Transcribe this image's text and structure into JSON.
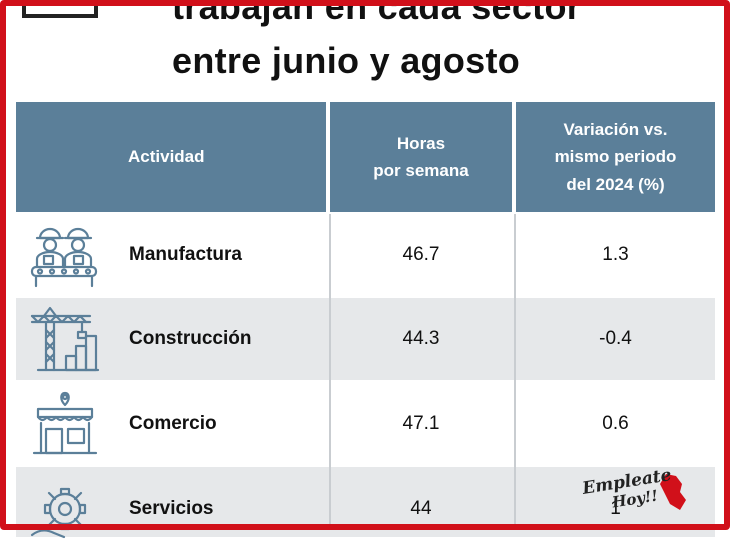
{
  "title": {
    "line1": "trabajan en cada sector",
    "line2": "entre junio y agosto"
  },
  "table": {
    "headers": {
      "activity": "Actividad",
      "hours_l1": "Horas",
      "hours_l2": "por semana",
      "variation_l1": "Variación vs.",
      "variation_l2": "mismo periodo",
      "variation_l3": "del 2024 (%)"
    },
    "rows": [
      {
        "activity": "Manufactura",
        "icon": "factory-workers-icon",
        "hours": "46.7",
        "variation": "1.3"
      },
      {
        "activity": "Construcción",
        "icon": "construction-crane-icon",
        "hours": "44.3",
        "variation": "-0.4"
      },
      {
        "activity": "Comercio",
        "icon": "store-icon",
        "hours": "47.1",
        "variation": "0.6"
      },
      {
        "activity": "Servicios",
        "icon": "gear-service-icon",
        "hours": "44",
        "variation": "1"
      }
    ]
  },
  "logo": {
    "line1": "Empleate",
    "line2": "Hoy!!"
  },
  "colors": {
    "header_bg": "#5b7f99",
    "row_alt_bg": "#e6e8ea",
    "frame": "#d1101a",
    "icon_stroke": "#5b7f99"
  }
}
